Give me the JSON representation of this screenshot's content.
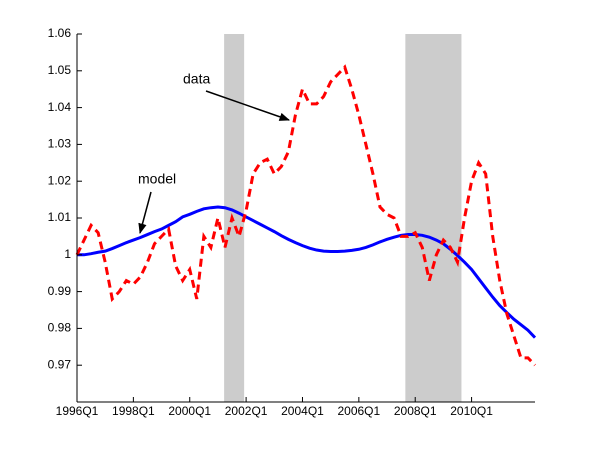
{
  "chart_data": {
    "type": "line",
    "x": [
      1996,
      1996.25,
      1996.5,
      1996.75,
      1997,
      1997.25,
      1997.5,
      1997.75,
      1998,
      1998.25,
      1998.5,
      1998.75,
      1999,
      1999.25,
      1999.5,
      1999.75,
      2000,
      2000.25,
      2000.5,
      2000.75,
      2001,
      2001.25,
      2001.5,
      2001.75,
      2002,
      2002.25,
      2002.5,
      2002.75,
      2003,
      2003.25,
      2003.5,
      2003.75,
      2004,
      2004.25,
      2004.5,
      2004.75,
      2005,
      2005.25,
      2005.5,
      2005.75,
      2006,
      2006.25,
      2006.5,
      2006.75,
      2007,
      2007.25,
      2007.5,
      2007.75,
      2008,
      2008.25,
      2008.5,
      2008.75,
      2009,
      2009.25,
      2009.5,
      2009.75,
      2010,
      2010.25,
      2010.5,
      2010.75,
      2011,
      2011.25,
      2011.5,
      2011.75,
      2012,
      2012.25
    ],
    "series": [
      {
        "name": "model",
        "color": "#0000ff",
        "dashed": false,
        "values": [
          1.0,
          1.0,
          1.0003,
          1.0007,
          1.001,
          1.0017,
          1.0025,
          1.0033,
          1.004,
          1.0047,
          1.0055,
          1.0063,
          1.007,
          1.008,
          1.009,
          1.0103,
          1.011,
          1.0118,
          1.0125,
          1.0128,
          1.013,
          1.0128,
          1.0122,
          1.0113,
          1.0103,
          1.0093,
          1.0083,
          1.0073,
          1.0063,
          1.0052,
          1.0042,
          1.0033,
          1.0025,
          1.0018,
          1.0013,
          1.001,
          1.0009,
          1.0009,
          1.001,
          1.0012,
          1.0015,
          1.002,
          1.0027,
          1.0035,
          1.0042,
          1.0048,
          1.0053,
          1.0055,
          1.0055,
          1.0053,
          1.0048,
          1.004,
          1.003,
          1.0015,
          0.9998,
          0.998,
          0.996,
          0.9935,
          0.991,
          0.9885,
          0.9862,
          0.9843,
          0.9825,
          0.981,
          0.9795,
          0.9775
        ]
      },
      {
        "name": "data",
        "color": "#ff0000",
        "dashed": true,
        "values": [
          1.0,
          1.004,
          1.008,
          1.006,
          0.998,
          0.988,
          0.99,
          0.993,
          0.992,
          0.994,
          0.998,
          1.003,
          1.005,
          1.007,
          0.997,
          0.993,
          0.996,
          0.988,
          1.005,
          1.002,
          1.01,
          1.002,
          1.01,
          1.005,
          1.012,
          1.022,
          1.025,
          1.026,
          1.022,
          1.024,
          1.028,
          1.038,
          1.045,
          1.041,
          1.041,
          1.043,
          1.047,
          1.049,
          1.051,
          1.045,
          1.038,
          1.03,
          1.022,
          1.013,
          1.011,
          1.01,
          1.005,
          1.005,
          1.006,
          1.002,
          0.993,
          1.0,
          1.004,
          1.002,
          0.998,
          1.01,
          1.02,
          1.025,
          1.022,
          1.005,
          0.993,
          0.984,
          0.978,
          0.972,
          0.972,
          0.97
        ]
      }
    ],
    "shaded_regions": [
      [
        2001.22,
        2001.93
      ],
      [
        2007.65,
        2009.64
      ]
    ],
    "shade_color": "#cccccc",
    "annotations": [
      "data",
      "model"
    ],
    "xlim": [
      1996,
      2012.25
    ],
    "ylim": [
      0.96,
      1.06
    ],
    "xticks": [
      {
        "value": 1996,
        "label": "1996Q1"
      },
      {
        "value": 1998,
        "label": "1998Q1"
      },
      {
        "value": 2000,
        "label": "2000Q1"
      },
      {
        "value": 2002,
        "label": "2002Q1"
      },
      {
        "value": 2004,
        "label": "2004Q1"
      },
      {
        "value": 2006,
        "label": "2006Q1"
      },
      {
        "value": 2008,
        "label": "2008Q1"
      },
      {
        "value": 2010,
        "label": "2010Q1"
      }
    ],
    "yticks": [
      0.97,
      0.98,
      0.99,
      1,
      1.01,
      1.02,
      1.03,
      1.04,
      1.05,
      1.06
    ]
  }
}
